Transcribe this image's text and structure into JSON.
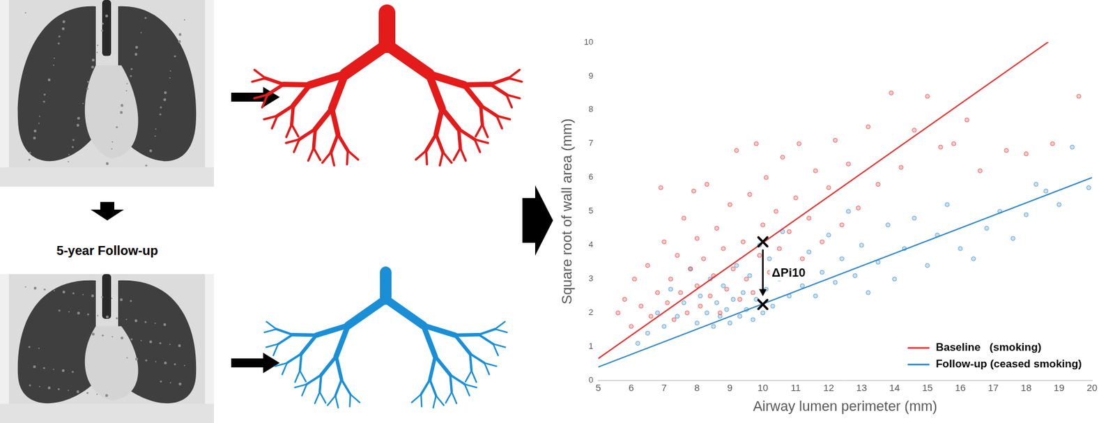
{
  "panels": {
    "follow_up_label": "5-year Follow-up"
  },
  "chart_data": {
    "type": "scatter",
    "x_label": "Airway lumen perimeter (mm)",
    "y_label": "Square root of wall area (mm)",
    "xlim": [
      5,
      20
    ],
    "ylim": [
      0,
      10
    ],
    "xticks": [
      5,
      6,
      7,
      8,
      9,
      10,
      11,
      12,
      13,
      14,
      15,
      16,
      17,
      18,
      19,
      20
    ],
    "yticks": [
      0,
      1,
      2,
      3,
      4,
      5,
      6,
      7,
      8,
      9,
      10
    ],
    "grid": false,
    "legend": "lower right",
    "marker": "circle",
    "series": [
      {
        "name": "Baseline   (smoking)",
        "color": "#e83030",
        "line_style": "solid",
        "x": [
          5.6,
          5.8,
          6.0,
          6.1,
          6.3,
          6.5,
          6.6,
          6.8,
          6.9,
          7.0,
          7.1,
          7.2,
          7.3,
          7.4,
          7.5,
          7.6,
          7.7,
          7.8,
          7.9,
          8.0,
          8.0,
          8.1,
          8.2,
          8.3,
          8.4,
          8.5,
          8.6,
          8.7,
          8.8,
          8.9,
          9.0,
          9.1,
          9.2,
          9.3,
          9.4,
          9.5,
          9.6,
          9.7,
          9.8,
          9.9,
          10.0,
          10.1,
          10.2,
          10.4,
          10.5,
          10.6,
          10.8,
          11.0,
          11.1,
          11.2,
          11.4,
          11.6,
          11.8,
          12.0,
          12.2,
          12.4,
          12.6,
          12.9,
          13.2,
          13.5,
          13.9,
          14.2,
          14.6,
          15.0,
          15.4,
          15.8,
          16.2,
          16.6,
          17.4,
          18.0,
          18.8,
          19.6
        ],
        "values": [
          2.0,
          2.4,
          1.6,
          3.0,
          2.2,
          3.4,
          1.9,
          2.6,
          5.7,
          4.1,
          2.3,
          3.0,
          1.8,
          3.7,
          2.6,
          4.8,
          2.0,
          3.3,
          5.6,
          2.8,
          4.2,
          2.2,
          3.6,
          5.8,
          2.5,
          3.1,
          4.5,
          2.0,
          3.9,
          2.7,
          5.2,
          3.3,
          6.8,
          2.4,
          4.1,
          3.0,
          5.5,
          2.6,
          7.0,
          3.7,
          4.6,
          6.0,
          3.2,
          5.0,
          3.9,
          6.6,
          4.4,
          5.4,
          7.0,
          3.6,
          4.8,
          6.2,
          4.1,
          5.7,
          7.1,
          4.6,
          6.4,
          5.1,
          7.5,
          5.8,
          8.5,
          6.3,
          7.4,
          8.4,
          6.9,
          7.0,
          7.7,
          6.2,
          6.8,
          6.7,
          7.0,
          8.4
        ],
        "fit": {
          "x": [
            5,
            19.1
          ],
          "values": [
            0.65,
            10.3
          ]
        }
      },
      {
        "name": "Follow-up (ceased smoking)",
        "color": "#2e86c8",
        "line_style": "solid",
        "x": [
          6.2,
          6.5,
          6.8,
          7.0,
          7.2,
          7.4,
          7.6,
          7.8,
          8.0,
          8.1,
          8.3,
          8.4,
          8.5,
          8.6,
          8.7,
          8.8,
          8.9,
          9.0,
          9.1,
          9.2,
          9.3,
          9.4,
          9.5,
          9.6,
          9.7,
          9.8,
          9.9,
          10.0,
          10.1,
          10.2,
          10.3,
          10.5,
          10.6,
          10.8,
          11.0,
          11.2,
          11.4,
          11.6,
          11.8,
          12.0,
          12.2,
          12.4,
          12.6,
          12.8,
          13.0,
          13.2,
          13.5,
          13.8,
          14.0,
          14.3,
          14.6,
          15.0,
          15.3,
          15.6,
          16.0,
          16.4,
          16.8,
          17.2,
          17.6,
          18.0,
          18.3,
          18.6,
          19.0,
          19.4,
          19.9
        ],
        "values": [
          1.1,
          1.4,
          2.0,
          1.6,
          2.7,
          1.9,
          2.3,
          3.3,
          1.7,
          2.5,
          2.0,
          3.0,
          1.6,
          2.3,
          1.9,
          2.8,
          2.1,
          1.7,
          2.4,
          3.4,
          1.9,
          2.6,
          2.1,
          3.1,
          1.8,
          2.4,
          4.0,
          2.0,
          2.7,
          3.6,
          2.2,
          3.0,
          4.4,
          2.5,
          3.3,
          2.8,
          3.8,
          2.5,
          3.2,
          4.3,
          2.9,
          3.6,
          5.0,
          3.1,
          4.0,
          2.6,
          3.5,
          4.6,
          3.0,
          3.9,
          4.8,
          3.4,
          4.3,
          5.2,
          3.9,
          3.6,
          4.5,
          5.0,
          4.2,
          4.9,
          5.8,
          5.6,
          5.2,
          6.9,
          5.7
        ],
        "fit": {
          "x": [
            5,
            20
          ],
          "values": [
            0.4,
            6.0
          ]
        }
      }
    ],
    "annotations": [
      {
        "text": "ΔPi10",
        "x": 10,
        "y_from": 4.1,
        "y_to": 2.25
      }
    ]
  }
}
